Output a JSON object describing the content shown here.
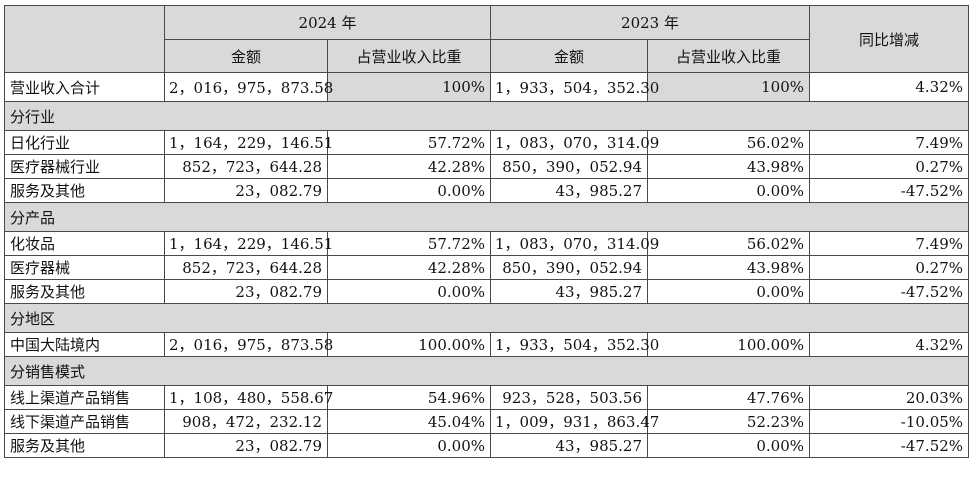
{
  "header": {
    "year_2024": "2024 年",
    "year_2023": "2023 年",
    "yoy": "同比增减",
    "amount_2024": "金额",
    "ratio_2024": "占营业收入比重",
    "amount_2023": "金额",
    "ratio_2023": "占营业收入比重"
  },
  "total": {
    "label": "营业收入合计",
    "a2024": "2，016，975，873.58",
    "r2024": "100%",
    "a2023": "1，933，504，352.30",
    "r2023": "100%",
    "yoy": "4.32%"
  },
  "sections": [
    {
      "title": "分行业",
      "rows": [
        {
          "label": "日化行业",
          "a2024": "1，164，229，146.51",
          "r2024": "57.72%",
          "a2023": "1，083，070，314.09",
          "r2023": "56.02%",
          "yoy": "7.49%"
        },
        {
          "label": "医疗器械行业",
          "a2024": "852，723，644.28",
          "r2024": "42.28%",
          "a2023": "850，390，052.94",
          "r2023": "43.98%",
          "yoy": "0.27%"
        },
        {
          "label": "服务及其他",
          "a2024": "23，082.79",
          "r2024": "0.00%",
          "a2023": "43，985.27",
          "r2023": "0.00%",
          "yoy": "-47.52%"
        }
      ]
    },
    {
      "title": "分产品",
      "rows": [
        {
          "label": "化妆品",
          "a2024": "1，164，229，146.51",
          "r2024": "57.72%",
          "a2023": "1，083，070，314.09",
          "r2023": "56.02%",
          "yoy": "7.49%"
        },
        {
          "label": "医疗器械",
          "a2024": "852，723，644.28",
          "r2024": "42.28%",
          "a2023": "850，390，052.94",
          "r2023": "43.98%",
          "yoy": "0.27%"
        },
        {
          "label": "服务及其他",
          "a2024": "23，082.79",
          "r2024": "0.00%",
          "a2023": "43，985.27",
          "r2023": "0.00%",
          "yoy": "-47.52%"
        }
      ]
    },
    {
      "title": "分地区",
      "rows": [
        {
          "label": "中国大陆境内",
          "a2024": "2，016，975，873.58",
          "r2024": "100.00%",
          "a2023": "1，933，504，352.30",
          "r2023": "100.00%",
          "yoy": "4.32%"
        }
      ]
    },
    {
      "title": "分销售模式",
      "rows": [
        {
          "label": "线上渠道产品销售",
          "a2024": "1，108，480，558.67",
          "r2024": "54.96%",
          "a2023": "923，528，503.56",
          "r2023": "47.76%",
          "yoy": "20.03%"
        },
        {
          "label": "线下渠道产品销售",
          "a2024": "908，472，232.12",
          "r2024": "45.04%",
          "a2023": "1，009，931，863.47",
          "r2023": "52.23%",
          "yoy": "-10.05%"
        },
        {
          "label": "服务及其他",
          "a2024": "23，082.79",
          "r2024": "0.00%",
          "a2023": "43，985.27",
          "r2023": "0.00%",
          "yoy": "-47.52%"
        }
      ]
    }
  ]
}
